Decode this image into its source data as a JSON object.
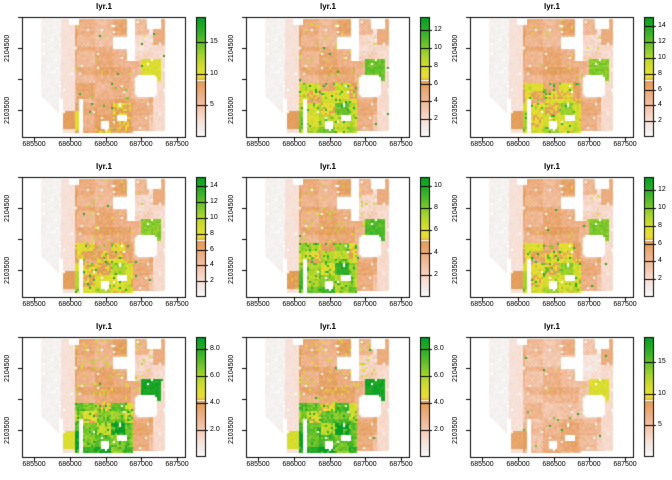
{
  "figure": {
    "kind": "R raster plot grid",
    "rows": 3,
    "cols": 3
  },
  "chart_data": {
    "type": "heatmap",
    "title": "lyr.1",
    "xlabel": "",
    "ylabel": "",
    "x_ticks": [
      "685500",
      "686000",
      "686500",
      "687000",
      "687500"
    ],
    "y_tick_labels": [
      "2104500",
      "2103500"
    ],
    "x_range": [
      685300,
      687560
    ],
    "y_range": [
      2103180,
      2105020
    ],
    "legend_position": "right",
    "grid": false,
    "color_ramp": [
      [
        0.0,
        "#fefefe"
      ],
      [
        0.05,
        "#f2efec"
      ],
      [
        0.13,
        "#f8e0d6"
      ],
      [
        0.24,
        "#f3c6ab"
      ],
      [
        0.33,
        "#eeb28a"
      ],
      [
        0.42,
        "#e7a265"
      ],
      [
        0.47,
        "#df9a55"
      ],
      [
        0.5,
        "#e8df33"
      ],
      [
        0.58,
        "#d8dd2f"
      ],
      [
        0.68,
        "#a8d42c"
      ],
      [
        0.8,
        "#5cbe2b"
      ],
      [
        0.9,
        "#2aac28"
      ],
      [
        1.0,
        "#089e26"
      ]
    ],
    "legend_seam_fraction": 0.475,
    "panels": [
      {
        "id": "panel-1",
        "row": 1,
        "col": 1,
        "title": "lyr.1",
        "legend_ticks": [
          "5",
          "10",
          "15"
        ],
        "legend_max": 19,
        "body_value": 0.31,
        "hot_value": 0.56,
        "green_gain": 0.1,
        "speckle": 0.02,
        "square_value": 0.42
      },
      {
        "id": "panel-2",
        "row": 1,
        "col": 2,
        "title": "lyr.1",
        "legend_ticks": [
          "2",
          "4",
          "6",
          "8",
          "10",
          "12"
        ],
        "legend_max": 13.5,
        "body_value": 0.33,
        "hot_value": 0.78,
        "green_gain": 0.38,
        "speckle": 0.1,
        "square_value": 0.42
      },
      {
        "id": "panel-3",
        "row": 1,
        "col": 3,
        "title": "lyr.1",
        "legend_ticks": [
          "2",
          "4",
          "6",
          "8",
          "10",
          "12",
          "14"
        ],
        "legend_max": 15.2,
        "body_value": 0.33,
        "hot_value": 0.74,
        "green_gain": 0.3,
        "speckle": 0.07,
        "square_value": 0.42
      },
      {
        "id": "panel-4",
        "row": 2,
        "col": 1,
        "title": "lyr.1",
        "legend_ticks": [
          "2",
          "4",
          "6",
          "8",
          "10",
          "12",
          "14"
        ],
        "legend_max": 15.2,
        "body_value": 0.33,
        "hot_value": 0.74,
        "green_gain": 0.26,
        "speckle": 0.06,
        "square_value": 0.42
      },
      {
        "id": "panel-5",
        "row": 2,
        "col": 2,
        "title": "lyr.1",
        "legend_ticks": [
          "2",
          "4",
          "6",
          "8",
          "10"
        ],
        "legend_max": 10.8,
        "body_value": 0.34,
        "hot_value": 0.82,
        "green_gain": 0.48,
        "speckle": 0.14,
        "square_value": 0.44
      },
      {
        "id": "panel-6",
        "row": 2,
        "col": 3,
        "title": "lyr.1",
        "legend_ticks": [
          "2",
          "4",
          "6",
          "8",
          "10",
          "12"
        ],
        "legend_max": 13.5,
        "body_value": 0.33,
        "hot_value": 0.74,
        "green_gain": 0.3,
        "speckle": 0.08,
        "square_value": 0.42
      },
      {
        "id": "panel-7",
        "row": 3,
        "col": 1,
        "title": "lyr.1",
        "legend_ticks": [
          "2.0",
          "4.0",
          "6.0",
          "8.0"
        ],
        "legend_max": 8.9,
        "body_value": 0.35,
        "hot_value": 0.95,
        "green_gain": 0.58,
        "speckle": 0.2,
        "square_value": 0.54
      },
      {
        "id": "panel-8",
        "row": 3,
        "col": 2,
        "title": "lyr.1",
        "legend_ticks": [
          "2.0",
          "4.0",
          "6.0",
          "8.0"
        ],
        "legend_max": 8.9,
        "body_value": 0.35,
        "hot_value": 0.95,
        "green_gain": 0.64,
        "speckle": 0.22,
        "square_value": 0.56
      },
      {
        "id": "panel-9",
        "row": 3,
        "col": 3,
        "title": "lyr.1",
        "legend_ticks": [
          "5",
          "10",
          "15"
        ],
        "legend_max": 19,
        "body_value": 0.27,
        "hot_value": 0.56,
        "green_gain": 0.04,
        "speckle": 0.012,
        "square_value": 0.38
      }
    ]
  }
}
